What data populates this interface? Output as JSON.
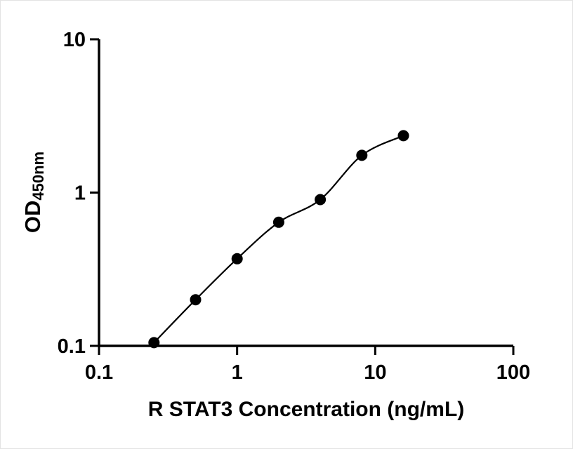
{
  "figure": {
    "background_color": "#ffffff",
    "axis_color": "#000000"
  },
  "chart_data": {
    "type": "scatter",
    "title": "",
    "xlabel": "R STAT3 Concentration (ng/mL)",
    "ylabel": "OD",
    "ylabel_subscript": "450nm",
    "xscale": "log",
    "yscale": "log",
    "xlim": [
      0.1,
      100
    ],
    "ylim": [
      0.1,
      10
    ],
    "x_ticks": [
      "0.1",
      "1",
      "10",
      "100"
    ],
    "y_ticks": [
      "10",
      "1",
      "0.1"
    ],
    "x": [
      0.25,
      0.5,
      1,
      2,
      4,
      8,
      16
    ],
    "y": [
      0.105,
      0.2,
      0.37,
      0.64,
      0.9,
      1.75,
      2.35
    ],
    "marker": "circle",
    "marker_color": "#000000",
    "line_color": "#000000",
    "grid": false,
    "legend": "none",
    "fit_curve": true
  }
}
